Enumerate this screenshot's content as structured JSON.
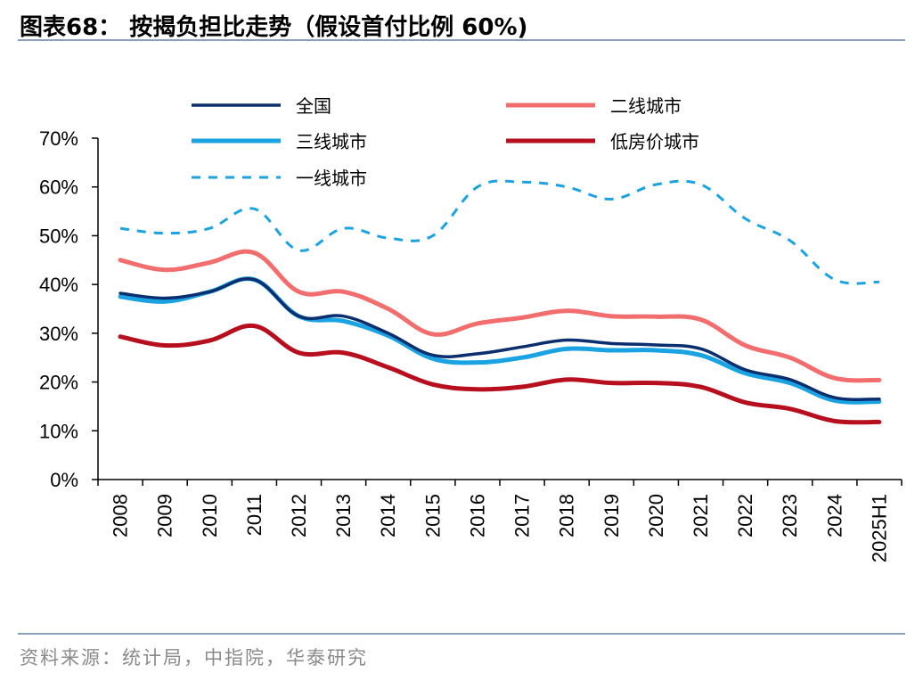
{
  "header": {
    "title": "图表68：  按揭负担比走势（假设首付比例 60%)"
  },
  "footer": {
    "source": "资料来源：统计局，中指院，华泰研究"
  },
  "chart_data": {
    "type": "line",
    "categories": [
      "2008",
      "2009",
      "2010",
      "2011",
      "2012",
      "2013",
      "2014",
      "2015",
      "2016",
      "2017",
      "2018",
      "2019",
      "2020",
      "2021",
      "2022",
      "2023",
      "2024",
      "2025H1"
    ],
    "y_ticks": [
      "0%",
      "10%",
      "20%",
      "30%",
      "40%",
      "50%",
      "60%",
      "70%"
    ],
    "ylim": [
      0,
      70
    ],
    "unit": "%",
    "legend_position": "top",
    "series": [
      {
        "name": "全国",
        "color": "#0b2e6e",
        "style": "solid",
        "width": 3.5,
        "values": [
          38.2,
          37.2,
          38.5,
          41.0,
          33.5,
          33.5,
          30.0,
          25.5,
          25.8,
          27.2,
          28.6,
          27.9,
          27.6,
          26.8,
          22.5,
          20.5,
          16.8,
          16.5
        ]
      },
      {
        "name": "二线城市",
        "color": "#f26d6d",
        "style": "solid",
        "width": 5,
        "values": [
          45.0,
          43.0,
          44.5,
          46.5,
          38.5,
          38.5,
          35.0,
          29.8,
          32.0,
          33.2,
          34.6,
          33.5,
          33.4,
          32.8,
          27.5,
          25.0,
          20.8,
          20.4
        ]
      },
      {
        "name": "三线城市",
        "color": "#1aa3e2",
        "style": "solid",
        "width": 5,
        "values": [
          37.5,
          36.5,
          38.5,
          41.0,
          33.5,
          32.5,
          29.5,
          24.8,
          24.0,
          25.0,
          26.8,
          26.5,
          26.5,
          25.5,
          21.8,
          19.8,
          16.2,
          16.0
        ]
      },
      {
        "name": "低房价城市",
        "color": "#b80f1f",
        "style": "solid",
        "width": 5,
        "values": [
          29.3,
          27.5,
          28.5,
          31.5,
          26.0,
          26.0,
          23.0,
          19.5,
          18.5,
          19.0,
          20.5,
          19.8,
          19.8,
          19.0,
          15.8,
          14.5,
          12.0,
          11.8
        ]
      },
      {
        "name": "一线城市",
        "color": "#1aa3e2",
        "style": "dashed",
        "width": 3,
        "values": [
          51.5,
          50.5,
          51.5,
          55.5,
          47.0,
          51.5,
          49.5,
          50.0,
          60.0,
          61.0,
          60.0,
          57.5,
          60.5,
          60.5,
          53.5,
          49.0,
          41.0,
          40.5
        ]
      }
    ]
  }
}
